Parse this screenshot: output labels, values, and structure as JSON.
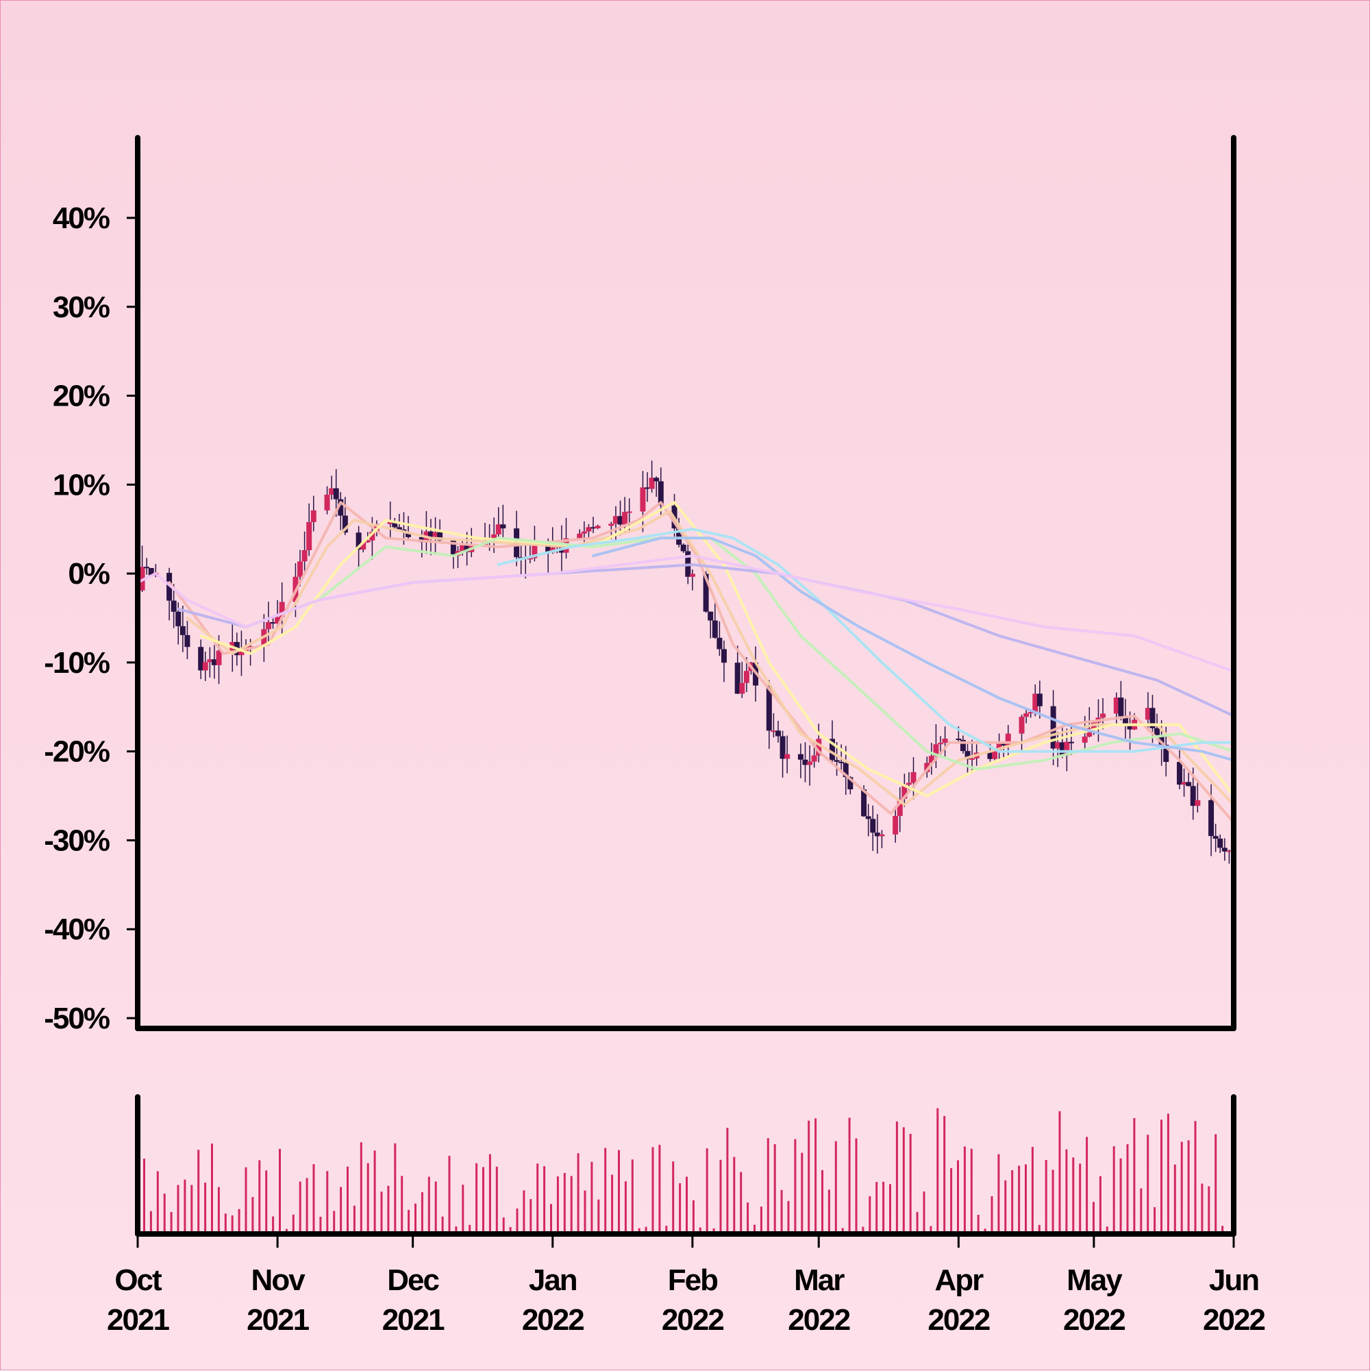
{
  "chart_data": [
    {
      "type": "candlestick",
      "title": "",
      "xlabel": "",
      "ylabel": "",
      "y_unit": "%",
      "ylim": [
        -50,
        45
      ],
      "y_ticks": [
        -50,
        -40,
        -30,
        -20,
        -10,
        0,
        10,
        20,
        30,
        40
      ],
      "y_tick_labels": [
        "-50%",
        "-40%",
        "-30%",
        "-20%",
        "-10%",
        "0%",
        "10%",
        "20%",
        "30%",
        "40%"
      ],
      "x_range": [
        "2021-10-01",
        "2022-06-01"
      ],
      "x_ticks": [
        "2021-10-01",
        "2021-11-01",
        "2021-12-01",
        "2022-01-01",
        "2022-02-01",
        "2022-03-01",
        "2022-04-01",
        "2022-05-01",
        "2022-06-01"
      ],
      "x_tick_labels": [
        {
          "month": "Oct",
          "year": "2021"
        },
        {
          "month": "Nov",
          "year": "2021"
        },
        {
          "month": "Dec",
          "year": "2021"
        },
        {
          "month": "Jan",
          "year": "2022"
        },
        {
          "month": "Feb",
          "year": "2022"
        },
        {
          "month": "Mar",
          "year": "2022"
        },
        {
          "month": "Apr",
          "year": "2022"
        },
        {
          "month": "May",
          "year": "2022"
        },
        {
          "month": "Jun",
          "year": "2022"
        }
      ],
      "close_path": [
        [
          "2021-10-01",
          -1
        ],
        [
          "2021-10-03",
          1
        ],
        [
          "2021-10-06",
          -1
        ],
        [
          "2021-10-10",
          -6
        ],
        [
          "2021-10-14",
          -11
        ],
        [
          "2021-10-17",
          -10
        ],
        [
          "2021-10-21",
          -8
        ],
        [
          "2021-10-25",
          -9
        ],
        [
          "2021-10-29",
          -7
        ],
        [
          "2021-11-03",
          -3
        ],
        [
          "2021-11-07",
          3
        ],
        [
          "2021-11-10",
          9
        ],
        [
          "2021-11-13",
          10
        ],
        [
          "2021-11-17",
          3
        ],
        [
          "2021-11-21",
          4
        ],
        [
          "2021-11-26",
          6
        ],
        [
          "2021-12-01",
          4
        ],
        [
          "2021-12-06",
          4
        ],
        [
          "2021-12-10",
          2
        ],
        [
          "2021-12-15",
          3
        ],
        [
          "2021-12-20",
          5
        ],
        [
          "2021-12-25",
          2
        ],
        [
          "2021-12-29",
          3
        ],
        [
          "2022-01-03",
          3
        ],
        [
          "2022-01-08",
          4
        ],
        [
          "2022-01-12",
          7
        ],
        [
          "2022-01-16",
          6
        ],
        [
          "2022-01-20",
          8
        ],
        [
          "2022-01-23",
          11
        ],
        [
          "2022-01-26",
          7
        ],
        [
          "2022-01-29",
          3
        ],
        [
          "2022-02-02",
          -2
        ],
        [
          "2022-02-07",
          -8
        ],
        [
          "2022-02-11",
          -14
        ],
        [
          "2022-02-14",
          -10
        ],
        [
          "2022-02-18",
          -17
        ],
        [
          "2022-02-22",
          -21
        ],
        [
          "2022-02-26",
          -22
        ],
        [
          "2022-03-01",
          -19
        ],
        [
          "2022-03-05",
          -21
        ],
        [
          "2022-03-09",
          -25
        ],
        [
          "2022-03-13",
          -29
        ],
        [
          "2022-03-17",
          -29
        ],
        [
          "2022-03-21",
          -23
        ],
        [
          "2022-03-26",
          -21
        ],
        [
          "2022-03-30",
          -17
        ],
        [
          "2022-04-03",
          -21
        ],
        [
          "2022-04-08",
          -20
        ],
        [
          "2022-04-13",
          -18
        ],
        [
          "2022-04-18",
          -14
        ],
        [
          "2022-04-22",
          -20
        ],
        [
          "2022-04-27",
          -19
        ],
        [
          "2022-05-01",
          -16
        ],
        [
          "2022-05-05",
          -14
        ],
        [
          "2022-05-09",
          -17
        ],
        [
          "2022-05-13",
          -16
        ],
        [
          "2022-05-17",
          -21
        ],
        [
          "2022-05-21",
          -24
        ],
        [
          "2022-05-25",
          -27
        ],
        [
          "2022-05-28",
          -30
        ],
        [
          "2022-06-01",
          -31
        ]
      ],
      "moving_averages": [
        {
          "color": "#f4b6b0",
          "points": [
            [
              "2021-10-08",
              -1
            ],
            [
              "2021-10-20",
              -9
            ],
            [
              "2021-10-30",
              -8
            ],
            [
              "2021-11-08",
              1
            ],
            [
              "2021-11-15",
              8
            ],
            [
              "2021-11-25",
              4
            ],
            [
              "2021-12-20",
              3
            ],
            [
              "2022-01-10",
              4
            ],
            [
              "2022-01-20",
              6
            ],
            [
              "2022-01-25",
              8
            ],
            [
              "2022-02-02",
              2
            ],
            [
              "2022-02-10",
              -8
            ],
            [
              "2022-02-18",
              -13
            ],
            [
              "2022-03-01",
              -20
            ],
            [
              "2022-03-10",
              -24
            ],
            [
              "2022-03-17",
              -27
            ],
            [
              "2022-03-30",
              -19
            ],
            [
              "2022-04-15",
              -19
            ],
            [
              "2022-04-25",
              -17
            ],
            [
              "2022-05-10",
              -16
            ],
            [
              "2022-05-20",
              -21
            ],
            [
              "2022-06-01",
              -28
            ]
          ]
        },
        {
          "color": "#f7cfa9",
          "points": [
            [
              "2021-10-12",
              -5
            ],
            [
              "2021-10-22",
              -9
            ],
            [
              "2021-11-02",
              -6
            ],
            [
              "2021-11-12",
              3
            ],
            [
              "2021-11-18",
              6
            ],
            [
              "2021-12-05",
              4
            ],
            [
              "2022-01-05",
              3
            ],
            [
              "2022-01-20",
              5
            ],
            [
              "2022-01-27",
              7
            ],
            [
              "2022-02-05",
              0
            ],
            [
              "2022-02-15",
              -10
            ],
            [
              "2022-02-25",
              -18
            ],
            [
              "2022-03-10",
              -22
            ],
            [
              "2022-03-20",
              -26
            ],
            [
              "2022-04-01",
              -21
            ],
            [
              "2022-04-15",
              -19
            ],
            [
              "2022-05-01",
              -17
            ],
            [
              "2022-05-15",
              -17
            ],
            [
              "2022-06-01",
              -26
            ]
          ]
        },
        {
          "color": "#fff3a8",
          "points": [
            [
              "2021-10-15",
              -7
            ],
            [
              "2021-10-26",
              -9
            ],
            [
              "2021-11-05",
              -6
            ],
            [
              "2021-11-15",
              1
            ],
            [
              "2021-11-25",
              6
            ],
            [
              "2021-12-15",
              4
            ],
            [
              "2022-01-10",
              3
            ],
            [
              "2022-01-28",
              8
            ],
            [
              "2022-02-08",
              1
            ],
            [
              "2022-02-18",
              -10
            ],
            [
              "2022-03-01",
              -18
            ],
            [
              "2022-03-12",
              -22
            ],
            [
              "2022-03-25",
              -25
            ],
            [
              "2022-04-05",
              -22
            ],
            [
              "2022-04-20",
              -19
            ],
            [
              "2022-05-05",
              -17
            ],
            [
              "2022-05-20",
              -17
            ],
            [
              "2022-06-01",
              -25
            ]
          ]
        },
        {
          "color": "#c2f0b8",
          "points": [
            [
              "2021-11-10",
              -3
            ],
            [
              "2021-11-25",
              3
            ],
            [
              "2021-12-10",
              2
            ],
            [
              "2021-12-20",
              4
            ],
            [
              "2022-01-10",
              3
            ],
            [
              "2022-01-25",
              4
            ],
            [
              "2022-02-05",
              4
            ],
            [
              "2022-02-15",
              0
            ],
            [
              "2022-02-25",
              -7
            ],
            [
              "2022-03-10",
              -13
            ],
            [
              "2022-03-25",
              -20
            ],
            [
              "2022-04-05",
              -22
            ],
            [
              "2022-04-20",
              -21
            ],
            [
              "2022-05-05",
              -19
            ],
            [
              "2022-05-20",
              -18
            ],
            [
              "2022-06-01",
              -20
            ]
          ]
        },
        {
          "color": "#a8e4f4",
          "points": [
            [
              "2021-12-20",
              1
            ],
            [
              "2022-01-05",
              3
            ],
            [
              "2022-01-20",
              4
            ],
            [
              "2022-02-01",
              5
            ],
            [
              "2022-02-10",
              4
            ],
            [
              "2022-02-20",
              1
            ],
            [
              "2022-03-01",
              -3
            ],
            [
              "2022-03-15",
              -10
            ],
            [
              "2022-03-30",
              -17
            ],
            [
              "2022-04-10",
              -20
            ],
            [
              "2022-04-25",
              -20
            ],
            [
              "2022-05-10",
              -20
            ],
            [
              "2022-05-25",
              -19
            ],
            [
              "2022-06-01",
              -19
            ]
          ]
        },
        {
          "color": "#a6c1f2",
          "points": [
            [
              "2022-01-10",
              2
            ],
            [
              "2022-01-25",
              4
            ],
            [
              "2022-02-05",
              4
            ],
            [
              "2022-02-15",
              2
            ],
            [
              "2022-02-25",
              -2
            ],
            [
              "2022-03-10",
              -6
            ],
            [
              "2022-03-25",
              -10
            ],
            [
              "2022-04-10",
              -14
            ],
            [
              "2022-04-25",
              -17
            ],
            [
              "2022-05-10",
              -19
            ],
            [
              "2022-05-25",
              -20
            ],
            [
              "2022-06-01",
              -21
            ]
          ]
        },
        {
          "color": "#bcb3ef",
          "points": [
            [
              "2021-10-10",
              -4
            ],
            [
              "2021-10-25",
              -6
            ],
            [
              "2021-11-10",
              -3
            ],
            [
              "2021-12-01",
              -1
            ],
            [
              "2022-01-01",
              0
            ],
            [
              "2022-02-01",
              1
            ],
            [
              "2022-02-20",
              0
            ],
            [
              "2022-03-01",
              -1
            ],
            [
              "2022-03-20",
              -3
            ],
            [
              "2022-04-10",
              -7
            ],
            [
              "2022-05-01",
              -10
            ],
            [
              "2022-05-15",
              -12
            ],
            [
              "2022-06-01",
              -16
            ]
          ]
        },
        {
          "color": "#efc6f5",
          "points": [
            [
              "2021-10-01",
              -1
            ],
            [
              "2021-10-05",
              0
            ],
            [
              "2021-10-12",
              -3
            ],
            [
              "2021-10-25",
              -6
            ],
            [
              "2021-11-10",
              -3
            ],
            [
              "2021-12-01",
              -1
            ],
            [
              "2022-01-01",
              0
            ],
            [
              "2022-02-01",
              2
            ],
            [
              "2022-02-20",
              0
            ],
            [
              "2022-03-10",
              -2
            ],
            [
              "2022-04-01",
              -4
            ],
            [
              "2022-04-20",
              -6
            ],
            [
              "2022-05-10",
              -7
            ],
            [
              "2022-06-01",
              -11
            ]
          ]
        }
      ],
      "colors": {
        "up": "#d2285e",
        "down": "#2b1447"
      }
    },
    {
      "type": "bar",
      "title": "",
      "ylabel": "",
      "color": "#d2285e",
      "bar_count": 160,
      "x_range": [
        "2021-10-01",
        "2022-06-01"
      ]
    }
  ],
  "colors": {
    "background_top": "#f9d4e0",
    "background_bottom": "#fde0ea",
    "axis": "#000000",
    "border": "#e98bb8"
  }
}
